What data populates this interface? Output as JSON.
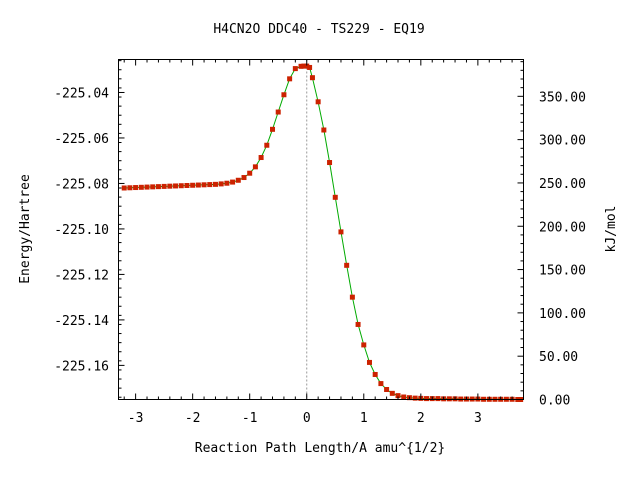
{
  "chart_data": {
    "type": "scatter",
    "title": "H4CN2O   DDC40 - TS229 - EQ19",
    "xlabel": "Reaction Path Length/A amu^{1/2}",
    "ylabel": "Energy/Hartree",
    "y2label": "kJ/mol",
    "xlim": [
      -3.3,
      3.8
    ],
    "ylim": [
      -225.175,
      -225.0255
    ],
    "y2lim": [
      0.0,
      392.5
    ],
    "x_ticks": [
      -3,
      -2,
      -1,
      0,
      1,
      2,
      3
    ],
    "x_tick_labels": [
      "-3",
      "-2",
      "-1",
      "0",
      "1",
      "2",
      "3"
    ],
    "y_ticks": [
      -225.04,
      -225.06,
      -225.08,
      -225.1,
      -225.12,
      -225.14,
      -225.16
    ],
    "y_tick_labels": [
      "-225.04",
      "-225.06",
      "-225.08",
      "-225.10",
      "-225.12",
      "-225.14",
      "-225.16"
    ],
    "y2_ticks": [
      350,
      300,
      250,
      200,
      150,
      100,
      50,
      0
    ],
    "y2_tick_labels": [
      "350.00",
      "300.00",
      "250.00",
      "200.00",
      "150.00",
      "100.00",
      "50.00",
      "0.00"
    ],
    "ts_marker_x": 0.0,
    "colors": {
      "line": "#00aa00",
      "marker": "#cc2200",
      "ts_line": "#9a9a9a"
    },
    "series": [
      {
        "x": [
          -3.2,
          -3.1,
          -3.0,
          -2.9,
          -2.8,
          -2.7,
          -2.6,
          -2.5,
          -2.4,
          -2.3,
          -2.2,
          -2.1,
          -2.0,
          -1.9,
          -1.8,
          -1.7,
          -1.6,
          -1.5,
          -1.4,
          -1.3,
          -1.2,
          -1.1,
          -1.0,
          -0.9,
          -0.8,
          -0.7,
          -0.6,
          -0.5,
          -0.4,
          -0.3,
          -0.2,
          -0.1,
          -0.05,
          0.0,
          0.05,
          0.1,
          0.2,
          0.3,
          0.4,
          0.5,
          0.6,
          0.7,
          0.8,
          0.9,
          1.0,
          1.1,
          1.2,
          1.3,
          1.4,
          1.5,
          1.6,
          1.7,
          1.8,
          1.9,
          2.0,
          2.1,
          2.2,
          2.3,
          2.4,
          2.5,
          2.6,
          2.7,
          2.8,
          2.9,
          3.0,
          3.1,
          3.2,
          3.3,
          3.4,
          3.5,
          3.6,
          3.7,
          3.75
        ],
        "y": [
          -225.082,
          -225.0819,
          -225.0818,
          -225.0817,
          -225.0816,
          -225.0815,
          -225.0814,
          -225.0813,
          -225.0812,
          -225.0811,
          -225.081,
          -225.0809,
          -225.0808,
          -225.0807,
          -225.0806,
          -225.0805,
          -225.0804,
          -225.0802,
          -225.0799,
          -225.0794,
          -225.0786,
          -225.0774,
          -225.0755,
          -225.0727,
          -225.0686,
          -225.0632,
          -225.0562,
          -225.0486,
          -225.041,
          -225.034,
          -225.0295,
          -225.0285,
          -225.0284,
          -225.0284,
          -225.029,
          -225.0335,
          -225.0441,
          -225.0565,
          -225.0708,
          -225.0861,
          -225.1013,
          -225.116,
          -225.13,
          -225.142,
          -225.151,
          -225.1587,
          -225.164,
          -225.168,
          -225.1706,
          -225.1723,
          -225.1733,
          -225.1739,
          -225.1742,
          -225.1744,
          -225.1745,
          -225.1746,
          -225.1746,
          -225.1746,
          -225.1747,
          -225.1747,
          -225.1747,
          -225.1748,
          -225.1748,
          -225.1748,
          -225.1748,
          -225.1749,
          -225.1749,
          -225.1749,
          -225.1749,
          -225.1749,
          -225.1749,
          -225.175,
          -225.175
        ]
      }
    ]
  }
}
